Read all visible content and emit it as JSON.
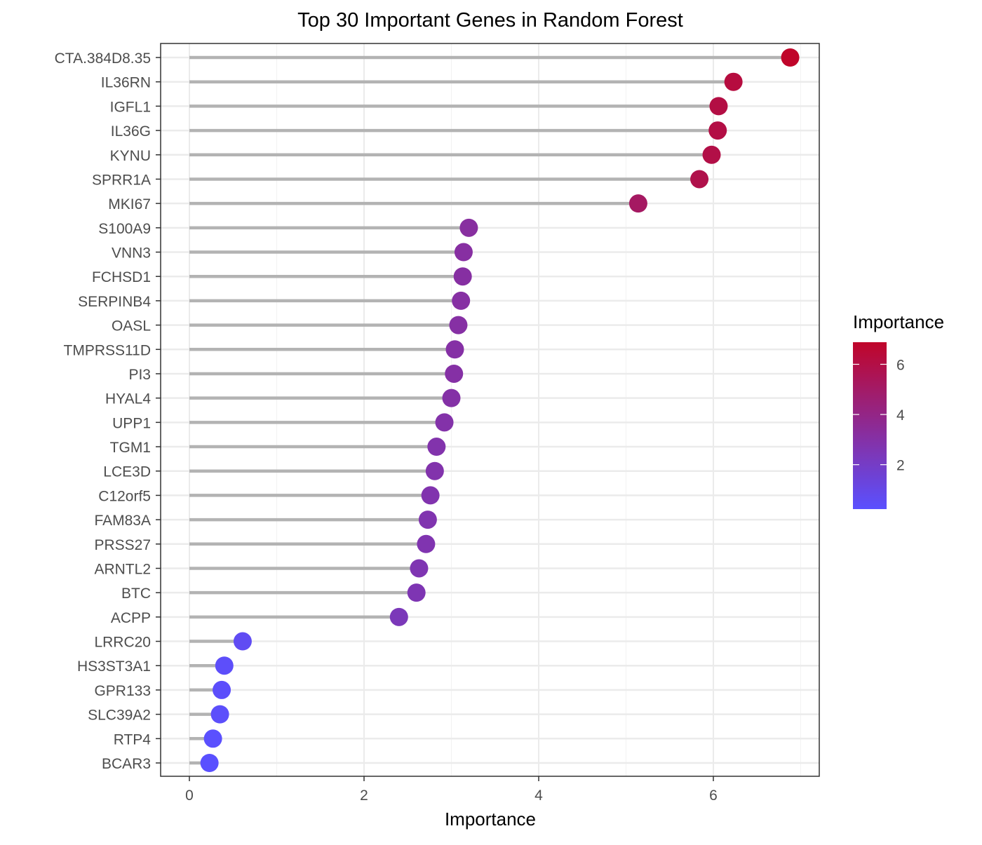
{
  "chart_data": {
    "type": "lollipop",
    "title": "Top 30 Important Genes in Random Forest",
    "xlabel": "Importance",
    "ylabel": "",
    "xlim": [
      -0.33,
      7.2
    ],
    "xticks": [
      0,
      2,
      4,
      6
    ],
    "grid": true,
    "categories": [
      "CTA.384D8.35",
      "IL36RN",
      "IGFL1",
      "IL36G",
      "KYNU",
      "SPRR1A",
      "MKI67",
      "S100A9",
      "VNN3",
      "FCHSD1",
      "SERPINB4",
      "OASL",
      "TMPRSS11D",
      "PI3",
      "HYAL4",
      "UPP1",
      "TGM1",
      "LCE3D",
      "C12orf5",
      "FAM83A",
      "PRSS27",
      "ARNTL2",
      "BTC",
      "ACPP",
      "LRRC20",
      "HS3ST3A1",
      "GPR133",
      "SLC39A2",
      "RTP4",
      "BCAR3"
    ],
    "values": [
      6.88,
      6.23,
      6.06,
      6.05,
      5.98,
      5.84,
      5.14,
      3.2,
      3.14,
      3.13,
      3.11,
      3.08,
      3.04,
      3.03,
      3.0,
      2.92,
      2.83,
      2.81,
      2.76,
      2.73,
      2.71,
      2.63,
      2.6,
      2.4,
      0.61,
      0.4,
      0.37,
      0.35,
      0.27,
      0.23
    ],
    "legend": {
      "title": "Importance",
      "placement": "right",
      "ticks": [
        2,
        4,
        6
      ],
      "range": [
        0.23,
        6.88
      ],
      "low_color": "#5A50FF",
      "high_color": "#C0052A"
    },
    "segment_color": "#B3B3B3"
  }
}
